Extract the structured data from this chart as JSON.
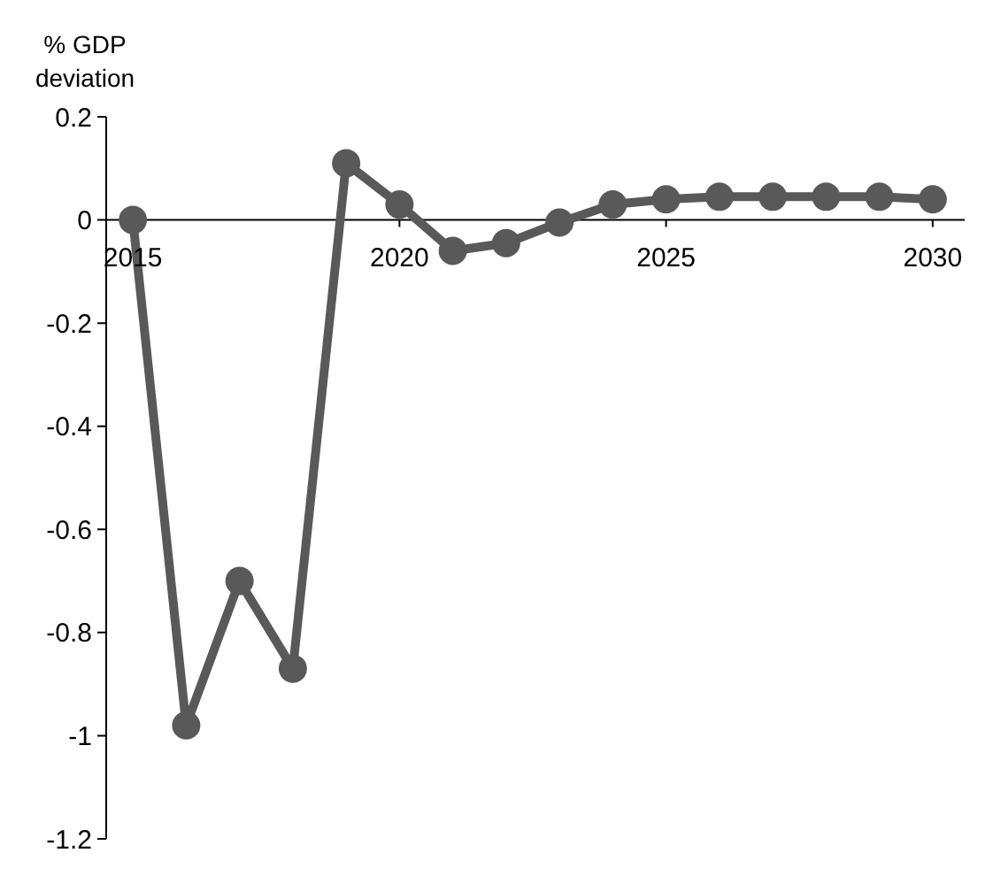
{
  "chart_data": {
    "type": "line",
    "ylabel": "% GDP deviation",
    "x": [
      2015,
      2016,
      2017,
      2018,
      2019,
      2020,
      2021,
      2022,
      2023,
      2024,
      2025,
      2026,
      2027,
      2028,
      2029,
      2030
    ],
    "series": [
      {
        "color": "#595959",
        "values": [
          0,
          -0.98,
          -0.7,
          -0.87,
          0.11,
          0.03,
          -0.06,
          -0.045,
          -0.005,
          0.03,
          0.04,
          0.045,
          0.045,
          0.045,
          0.045,
          0.04
        ]
      }
    ],
    "xlim": [
      2014.5,
      2030.6
    ],
    "xticks": [
      2015,
      2020,
      2025,
      2030
    ],
    "ylim": [
      -1.2,
      0.2
    ],
    "yticks": [
      0.2,
      0,
      -0.2,
      -0.4,
      -0.6,
      -0.8,
      -1,
      -1.2
    ],
    "grid": false,
    "marker": "circle",
    "line_style": "solid"
  }
}
